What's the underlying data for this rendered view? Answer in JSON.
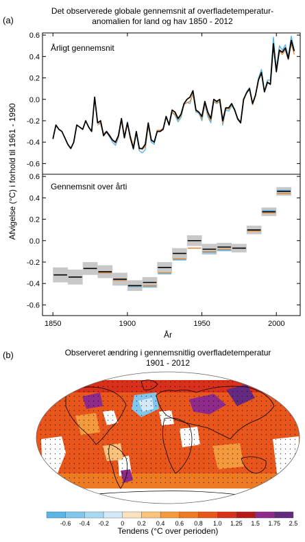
{
  "panel_a": {
    "letter": "(a)",
    "title_line1": "Det observerede globale gennemsnit af overfladetemperatur-",
    "title_line2": "anomalien for land og hav 1850 - 2012",
    "ylabel": "Afvigelse (°C) i forhold til 1961 - 1990",
    "xlabel": "År"
  },
  "panel_b": {
    "letter": "(b)",
    "title_line1": "Observeret ændring i gennemsnitlig overfladetemperatur",
    "title_line2": "1901 - 2012",
    "colorbar_label": "Tendens (°C over perioden)",
    "colorbar_ticks": [
      "-0.6",
      "-0.4",
      "-0.2",
      "0",
      "0.2",
      "0.4",
      "0.6",
      "0.8",
      "1.0",
      "1.25",
      "1.5",
      "1.75",
      "2.5"
    ],
    "colorbar_colors": [
      "#5ab4e5",
      "#82c6ee",
      "#a9d8f3",
      "#d2e9f7",
      "#fde1bd",
      "#fbc27b",
      "#f59a3c",
      "#ee7a22",
      "#e8561c",
      "#d9301b",
      "#b9181a",
      "#8e2a8a",
      "#642a80"
    ]
  },
  "chart_data": [
    {
      "type": "line",
      "title": "Årligt gennemsnit",
      "xlim": [
        1843,
        2016
      ],
      "ylim": [
        -0.7,
        0.62
      ],
      "x_ticks": [
        1850,
        1900,
        1950,
        2000
      ],
      "y_ticks": [
        -0.6,
        -0.4,
        -0.2,
        0.0,
        0.2,
        0.4,
        0.6
      ],
      "y_tick_labels": [
        "-0.6",
        "-0.4",
        "-0.2",
        "0.0",
        "0.2",
        "0.4",
        "0.6"
      ],
      "colors": [
        "#000000",
        "#5ab4e5",
        "#e08a3c"
      ],
      "series": [
        {
          "x": [
            1850,
            1852,
            1854,
            1856,
            1858,
            1860,
            1862,
            1864,
            1866,
            1868,
            1870,
            1872,
            1874,
            1876,
            1878,
            1880,
            1882,
            1884,
            1886,
            1888,
            1890,
            1892,
            1894,
            1896,
            1898,
            1900,
            1902,
            1904,
            1906,
            1908,
            1910,
            1912,
            1914,
            1916,
            1918,
            1920,
            1922,
            1924,
            1926,
            1928,
            1930,
            1932,
            1934,
            1936,
            1938,
            1940,
            1942,
            1944,
            1946,
            1948,
            1950,
            1952,
            1954,
            1956,
            1958,
            1960,
            1962,
            1964,
            1966,
            1968,
            1970,
            1972,
            1974,
            1976,
            1978,
            1980,
            1982,
            1984,
            1986,
            1988,
            1990,
            1992,
            1994,
            1996,
            1998,
            2000,
            2002,
            2004,
            2006,
            2008,
            2010,
            2012
          ],
          "values": [
            -0.37,
            -0.24,
            -0.28,
            -0.3,
            -0.36,
            -0.42,
            -0.46,
            -0.4,
            -0.24,
            -0.26,
            -0.28,
            -0.2,
            -0.26,
            -0.3,
            0.02,
            -0.22,
            -0.2,
            -0.34,
            -0.3,
            -0.34,
            -0.38,
            -0.4,
            -0.34,
            -0.18,
            -0.36,
            -0.22,
            -0.36,
            -0.46,
            -0.3,
            -0.46,
            -0.46,
            -0.42,
            -0.22,
            -0.38,
            -0.4,
            -0.3,
            -0.3,
            -0.28,
            -0.16,
            -0.24,
            -0.1,
            -0.12,
            -0.18,
            -0.14,
            -0.04,
            0.0,
            0.02,
            0.08,
            -0.1,
            -0.12,
            -0.16,
            -0.02,
            -0.12,
            -0.18,
            0.0,
            -0.02,
            0.0,
            -0.2,
            -0.08,
            -0.08,
            -0.04,
            -0.1,
            -0.18,
            -0.22,
            0.0,
            0.06,
            0.1,
            -0.04,
            0.04,
            0.18,
            0.25,
            0.07,
            0.16,
            0.14,
            0.52,
            0.26,
            0.46,
            0.44,
            0.48,
            0.38,
            0.55,
            0.45
          ]
        },
        {
          "x": [
            1880,
            1882,
            1884,
            1886,
            1888,
            1890,
            1892,
            1894,
            1896,
            1898,
            1900,
            1902,
            1904,
            1906,
            1908,
            1910,
            1912,
            1914,
            1916,
            1918,
            1920,
            1922,
            1924,
            1926,
            1928,
            1930,
            1932,
            1934,
            1936,
            1938,
            1940,
            1942,
            1944,
            1946,
            1948,
            1950,
            1952,
            1954,
            1956,
            1958,
            1960,
            1962,
            1964,
            1966,
            1968,
            1970,
            1972,
            1974,
            1976,
            1978,
            1980,
            1982,
            1984,
            1986,
            1988,
            1990,
            1992,
            1994,
            1996,
            1998,
            2000,
            2002,
            2004,
            2006,
            2008,
            2010,
            2012
          ],
          "values": [
            -0.21,
            -0.23,
            -0.33,
            -0.31,
            -0.35,
            -0.4,
            -0.43,
            -0.36,
            -0.18,
            -0.36,
            -0.21,
            -0.36,
            -0.47,
            -0.32,
            -0.48,
            -0.5,
            -0.47,
            -0.24,
            -0.4,
            -0.42,
            -0.29,
            -0.3,
            -0.28,
            -0.16,
            -0.23,
            -0.12,
            -0.15,
            -0.21,
            -0.17,
            -0.05,
            -0.03,
            -0.04,
            0.06,
            -0.12,
            -0.13,
            -0.2,
            -0.05,
            -0.16,
            -0.22,
            -0.02,
            -0.04,
            -0.02,
            -0.24,
            -0.1,
            -0.11,
            -0.06,
            -0.1,
            -0.19,
            -0.22,
            -0.01,
            0.07,
            0.11,
            -0.05,
            0.04,
            0.2,
            0.28,
            0.07,
            0.18,
            0.18,
            0.58,
            0.28,
            0.5,
            0.46,
            0.51,
            0.4,
            0.59,
            0.46
          ]
        },
        {
          "x": [
            1880,
            1882,
            1884,
            1886,
            1888,
            1890,
            1892,
            1894,
            1896,
            1898,
            1900,
            1902,
            1904,
            1906,
            1908,
            1910,
            1912,
            1914,
            1916,
            1918,
            1920,
            1922,
            1924,
            1926,
            1928,
            1930,
            1932,
            1934,
            1936,
            1938,
            1940,
            1942,
            1944,
            1946,
            1948,
            1950,
            1952,
            1954,
            1956,
            1958,
            1960,
            1962,
            1964,
            1966,
            1968,
            1970,
            1972,
            1974,
            1976,
            1978,
            1980,
            1982,
            1984,
            1986,
            1988,
            1990,
            1992,
            1994,
            1996,
            1998,
            2000,
            2002,
            2004,
            2006,
            2008,
            2010,
            2012
          ],
          "values": [
            -0.24,
            -0.22,
            -0.32,
            -0.3,
            -0.33,
            -0.38,
            -0.41,
            -0.35,
            -0.2,
            -0.34,
            -0.22,
            -0.34,
            -0.44,
            -0.31,
            -0.45,
            -0.47,
            -0.44,
            -0.25,
            -0.38,
            -0.4,
            -0.29,
            -0.29,
            -0.27,
            -0.17,
            -0.23,
            -0.12,
            -0.14,
            -0.19,
            -0.15,
            -0.05,
            -0.03,
            -0.02,
            0.05,
            -0.11,
            -0.12,
            -0.18,
            -0.04,
            -0.14,
            -0.2,
            -0.02,
            -0.03,
            -0.02,
            -0.22,
            -0.09,
            -0.09,
            -0.05,
            -0.09,
            -0.18,
            -0.21,
            -0.01,
            0.06,
            0.09,
            -0.05,
            0.03,
            0.18,
            0.24,
            0.07,
            0.15,
            0.15,
            0.5,
            0.25,
            0.45,
            0.42,
            0.46,
            0.37,
            0.52,
            0.42
          ]
        }
      ]
    },
    {
      "type": "bar",
      "title": "Gennemsnit over årti",
      "xlim": [
        1843,
        2016
      ],
      "ylim": [
        -0.7,
        0.62
      ],
      "x_ticks": [
        1850,
        1900,
        1950,
        2000
      ],
      "y_ticks": [
        -0.6,
        -0.4,
        -0.2,
        0.0,
        0.2,
        0.4,
        0.6
      ],
      "y_tick_labels": [
        "-0.6",
        "-0.4",
        "-0.2",
        "0.0",
        "0.2",
        "0.4",
        "0.6"
      ],
      "xlabel": "År",
      "decades": [
        1850,
        1860,
        1870,
        1880,
        1890,
        1900,
        1910,
        1920,
        1930,
        1940,
        1950,
        1960,
        1970,
        1980,
        1990,
        2000
      ],
      "series": [
        {
          "values": [
            -0.32,
            -0.34,
            -0.26,
            -0.29,
            -0.36,
            -0.42,
            -0.39,
            -0.25,
            -0.12,
            0.0,
            -0.08,
            -0.06,
            -0.07,
            0.1,
            0.27,
            0.46
          ]
        },
        {
          "values": [
            null,
            null,
            null,
            -0.3,
            -0.37,
            -0.43,
            -0.43,
            -0.31,
            -0.18,
            -0.07,
            -0.11,
            -0.09,
            -0.07,
            0.1,
            0.28,
            0.47
          ]
        },
        {
          "values": [
            null,
            null,
            null,
            -0.3,
            -0.37,
            -0.42,
            -0.42,
            -0.3,
            -0.17,
            -0.07,
            -0.1,
            -0.08,
            -0.07,
            0.09,
            0.26,
            0.44
          ]
        }
      ],
      "uncertainty": [
        0.07,
        0.07,
        0.06,
        0.06,
        0.06,
        0.05,
        0.05,
        0.05,
        0.05,
        0.05,
        0.05,
        0.04,
        0.04,
        0.04,
        0.04,
        0.04
      ]
    }
  ]
}
